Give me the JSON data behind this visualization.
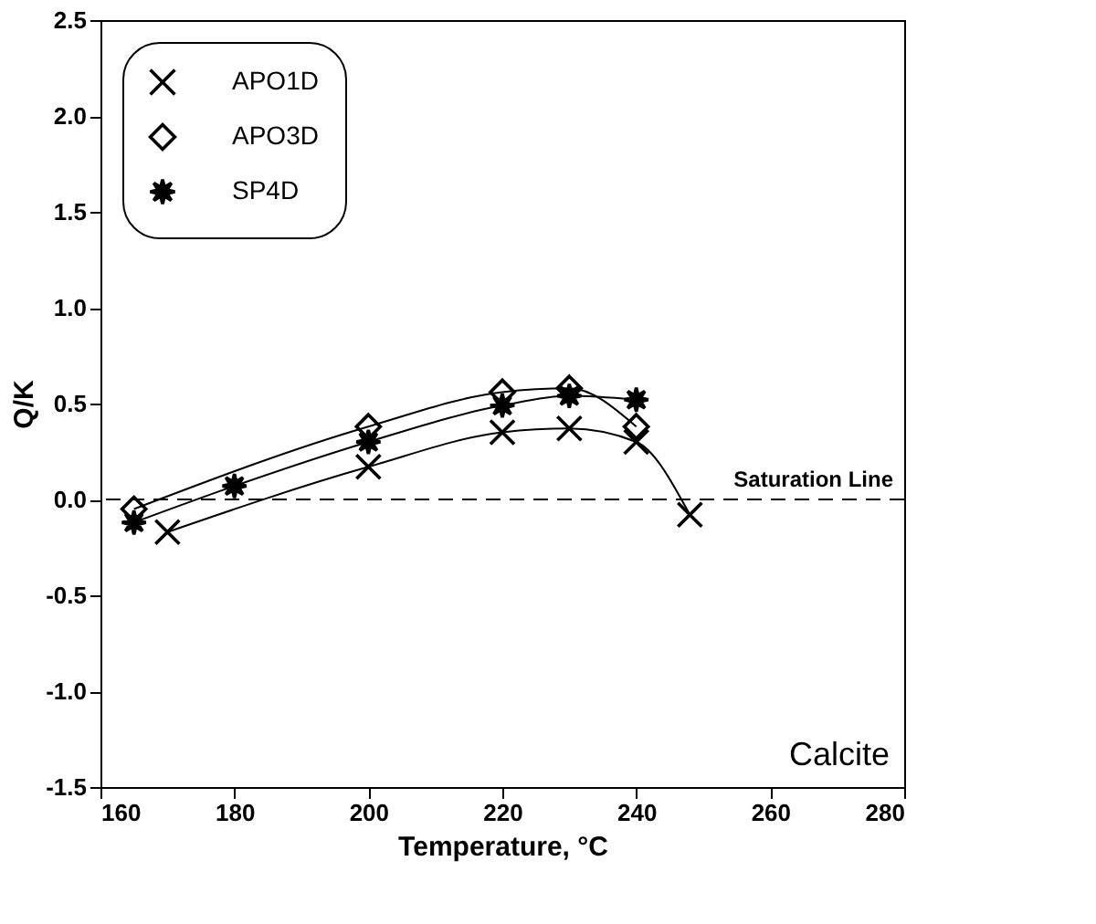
{
  "chart_data": {
    "type": "line",
    "xlabel": "Temperature, °C",
    "ylabel": "Q/K",
    "series": [
      {
        "name": "APO1D",
        "color": "#000000",
        "marker": "cross",
        "x": [
          170,
          200,
          220,
          230,
          240,
          248
        ],
        "values": [
          -0.17,
          0.17,
          0.35,
          0.37,
          0.3,
          -0.08
        ]
      },
      {
        "name": "APO3D",
        "color": "#000000",
        "marker": "diamond",
        "x": [
          165,
          200,
          220,
          230,
          240
        ],
        "values": [
          -0.05,
          0.38,
          0.56,
          0.58,
          0.38
        ]
      },
      {
        "name": "SP4D",
        "color": "#000000",
        "marker": "star",
        "x": [
          165,
          180,
          200,
          220,
          230,
          240
        ],
        "values": [
          -0.12,
          0.07,
          0.3,
          0.49,
          0.54,
          0.52
        ]
      }
    ],
    "xlim": [
      160,
      280
    ],
    "xticks": [
      160,
      180,
      200,
      220,
      240,
      260,
      280
    ],
    "ylim": [
      -1.5,
      2.5
    ],
    "yticks": [
      {
        "value": -1.5,
        "label": "-1.5"
      },
      {
        "value": -1,
        "label": "-1.0"
      },
      {
        "value": -0.5,
        "label": "-0.5"
      },
      {
        "value": 0,
        "label": "0.0"
      },
      {
        "value": 0.5,
        "label": "0.5"
      },
      {
        "value": 1,
        "label": "1.0"
      },
      {
        "value": 1.5,
        "label": "1.5"
      },
      {
        "value": 2,
        "label": "2.0"
      },
      {
        "value": 2.5,
        "label": "2.5"
      }
    ],
    "ref_lines": [
      {
        "axis": "y",
        "value": 0,
        "label": "Saturation Line",
        "color": "#000000",
        "line_style": "dashed"
      }
    ],
    "annotations": [
      {
        "text": "Calcite"
      }
    ],
    "grid": false,
    "legend": "top left",
    "line_style": "solid"
  }
}
